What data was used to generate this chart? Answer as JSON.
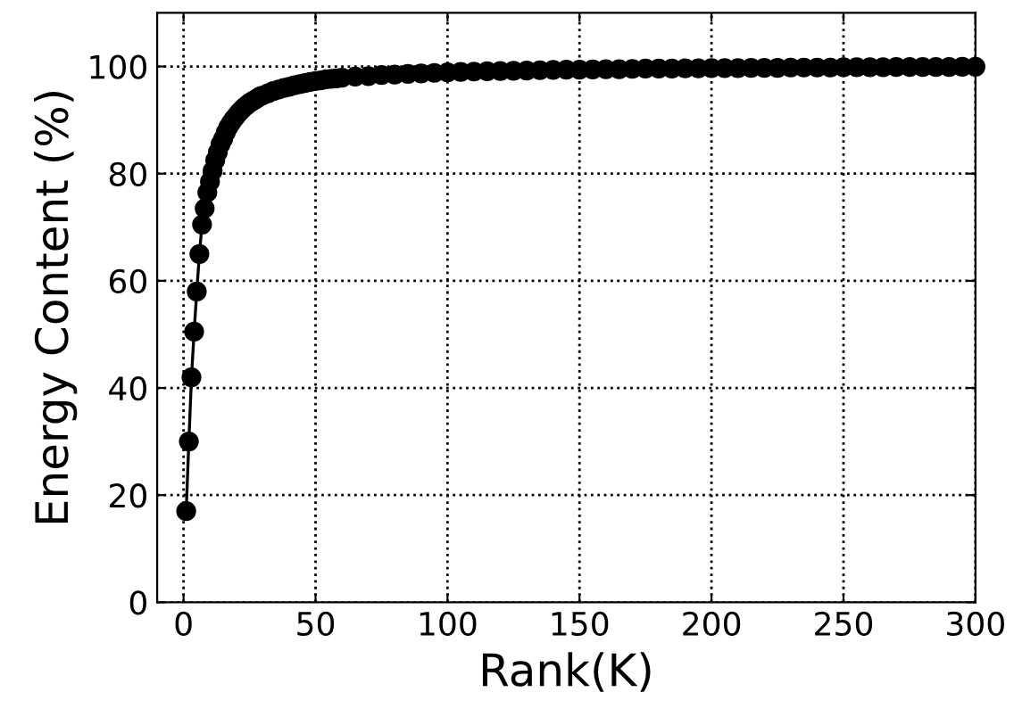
{
  "chart_data": {
    "type": "line",
    "xlabel": "Rank(K)",
    "ylabel": "Energy Content (%)",
    "xlim": [
      -10,
      300
    ],
    "ylim": [
      0,
      110
    ],
    "xticks": [
      0,
      50,
      100,
      150,
      200,
      250,
      300
    ],
    "yticks": [
      0,
      20,
      40,
      60,
      80,
      100
    ],
    "grid": true,
    "marker": "circle",
    "line_style": "solid",
    "series": [
      {
        "color": "#000000",
        "x": [
          1,
          2,
          3,
          4,
          5,
          6,
          7,
          8,
          9,
          10,
          11,
          12,
          13,
          14,
          15,
          16,
          17,
          18,
          19,
          20,
          21,
          22,
          23,
          24,
          25,
          26,
          27,
          28,
          29,
          30,
          32,
          34,
          36,
          38,
          40,
          42,
          44,
          46,
          48,
          50,
          52,
          54,
          56,
          58,
          60,
          65,
          70,
          75,
          80,
          85,
          90,
          95,
          100,
          105,
          110,
          115,
          120,
          125,
          130,
          135,
          140,
          145,
          150,
          155,
          160,
          165,
          170,
          175,
          180,
          185,
          190,
          195,
          200,
          205,
          210,
          215,
          220,
          225,
          230,
          235,
          240,
          245,
          250,
          255,
          260,
          265,
          270,
          275,
          280,
          285,
          290,
          295,
          300
        ],
        "values": [
          17,
          30,
          42,
          50.5,
          58,
          65,
          70.5,
          73.5,
          76.5,
          78.5,
          80.5,
          82.5,
          84,
          85.5,
          86.5,
          87.7,
          88.7,
          89.5,
          90.2,
          90.8,
          91.4,
          91.9,
          92.4,
          92.8,
          93.2,
          93.5,
          93.8,
          94.1,
          94.4,
          94.6,
          95,
          95.4,
          95.7,
          96,
          96.2,
          96.5,
          96.7,
          96.9,
          97.1,
          97.3,
          97.4,
          97.6,
          97.7,
          97.8,
          97.9,
          98.1,
          98.2,
          98.4,
          98.5,
          98.6,
          98.7,
          98.8,
          98.9,
          99.0,
          99.05,
          99.1,
          99.15,
          99.2,
          99.25,
          99.3,
          99.35,
          99.4,
          99.4,
          99.45,
          99.5,
          99.5,
          99.55,
          99.6,
          99.6,
          99.6,
          99.65,
          99.65,
          99.7,
          99.7,
          99.7,
          99.75,
          99.75,
          99.75,
          99.8,
          99.8,
          99.8,
          99.8,
          99.85,
          99.85,
          99.85,
          99.85,
          99.9,
          99.9,
          99.9,
          99.9,
          99.9,
          99.95,
          99.95
        ]
      }
    ]
  }
}
